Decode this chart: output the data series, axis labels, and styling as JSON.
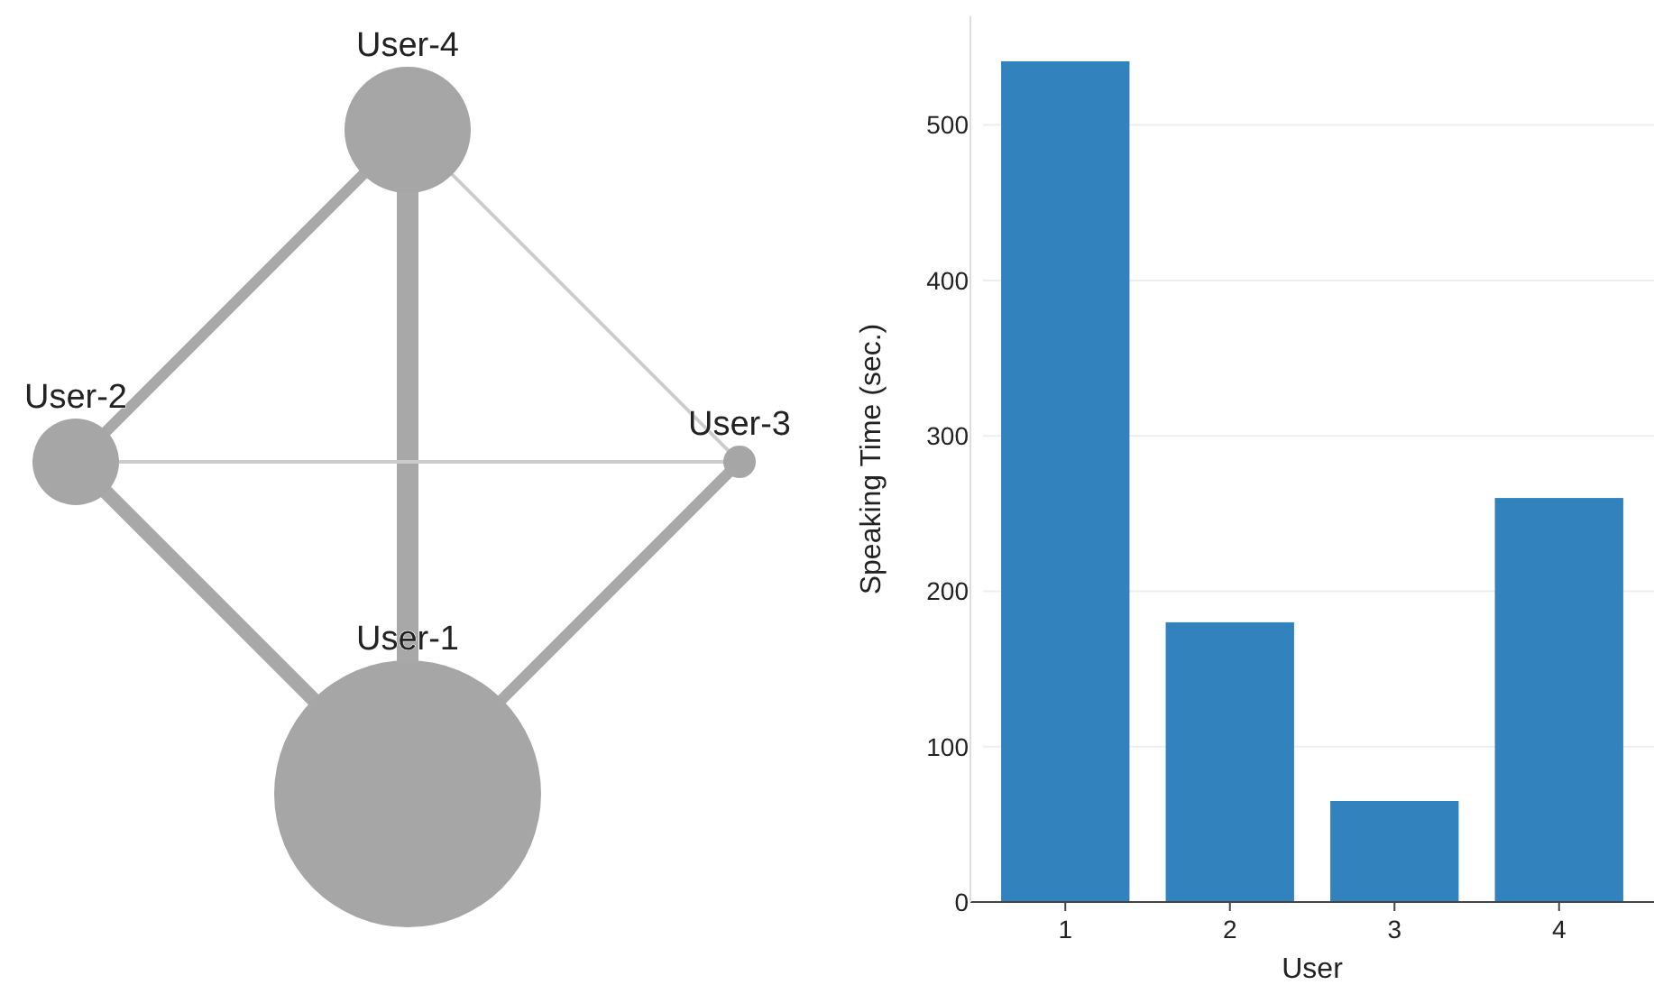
{
  "chart_data": [
    {
      "type": "other",
      "annotations": [
        "User-4",
        "User-2",
        "User-3",
        "User-1"
      ]
    },
    {
      "type": "bar",
      "categories": [
        "1",
        "2",
        "3",
        "4"
      ],
      "values": [
        541,
        180,
        65,
        260
      ],
      "color": "#3182bd",
      "xlabel": "User",
      "ylabel": "Speaking Time (sec.)",
      "ylim": [
        0,
        570
      ],
      "yticks": [
        0,
        100,
        200,
        300,
        400,
        500
      ],
      "grid": "y"
    }
  ]
}
